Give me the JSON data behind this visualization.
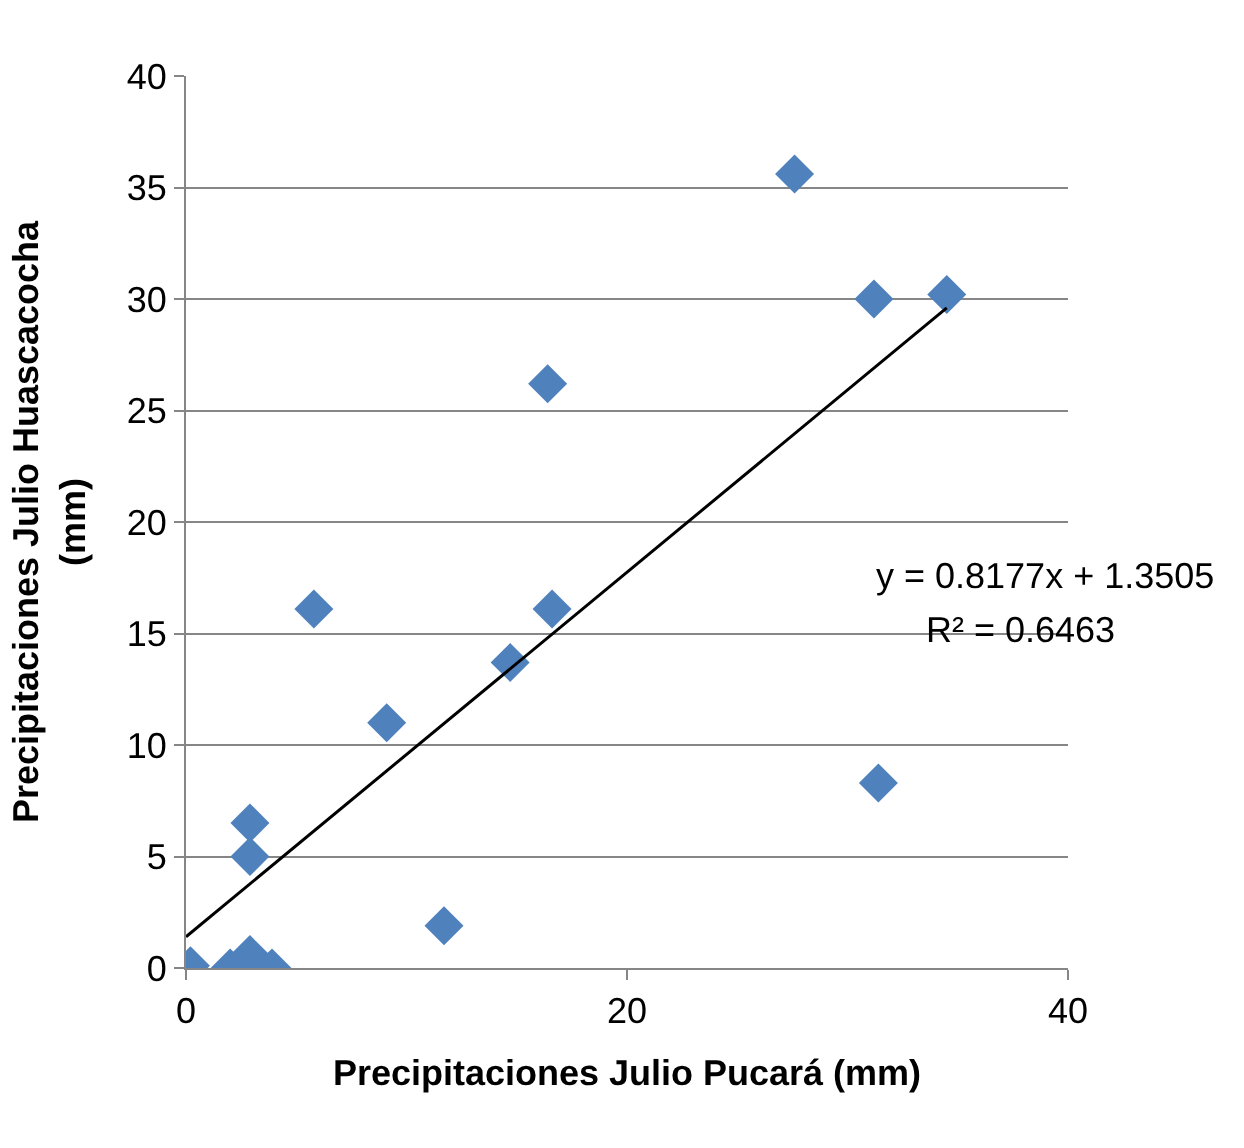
{
  "chart_data": {
    "type": "scatter",
    "xlabel": "Precipitaciones Julio Pucará (mm)",
    "ylabel": "Precipitaciones Julio Huascacocha (mm)",
    "xlim": [
      0,
      40
    ],
    "xticks": [
      0,
      20,
      40
    ],
    "ylim": [
      0,
      40
    ],
    "yticks": [
      0,
      5,
      10,
      15,
      20,
      25,
      30,
      35,
      40
    ],
    "grid": "y",
    "legend": false,
    "series": [
      {
        "marker": "diamond",
        "color": "#4f81bd",
        "x": [
          0.2,
          2.0,
          2.9,
          3.9,
          2.9,
          2.9,
          11.7,
          5.8,
          9.1,
          14.7,
          16.6,
          16.4,
          27.6,
          31.2,
          34.5,
          31.4
        ],
        "values": [
          0.1,
          0,
          0.6,
          0,
          6.5,
          5.0,
          1.9,
          16.1,
          11.0,
          13.7,
          16.1,
          26.2,
          35.6,
          30.0,
          30.2,
          8.3
        ]
      },
      {
        "type": "line",
        "color": "#000000",
        "line_style": "solid",
        "marker": "none",
        "x": [
          0,
          34.5
        ],
        "values": [
          1.4,
          29.6
        ]
      }
    ],
    "annotations": [
      "y = 0.8177x + 1.3505",
      "R² = 0.6463"
    ]
  }
}
